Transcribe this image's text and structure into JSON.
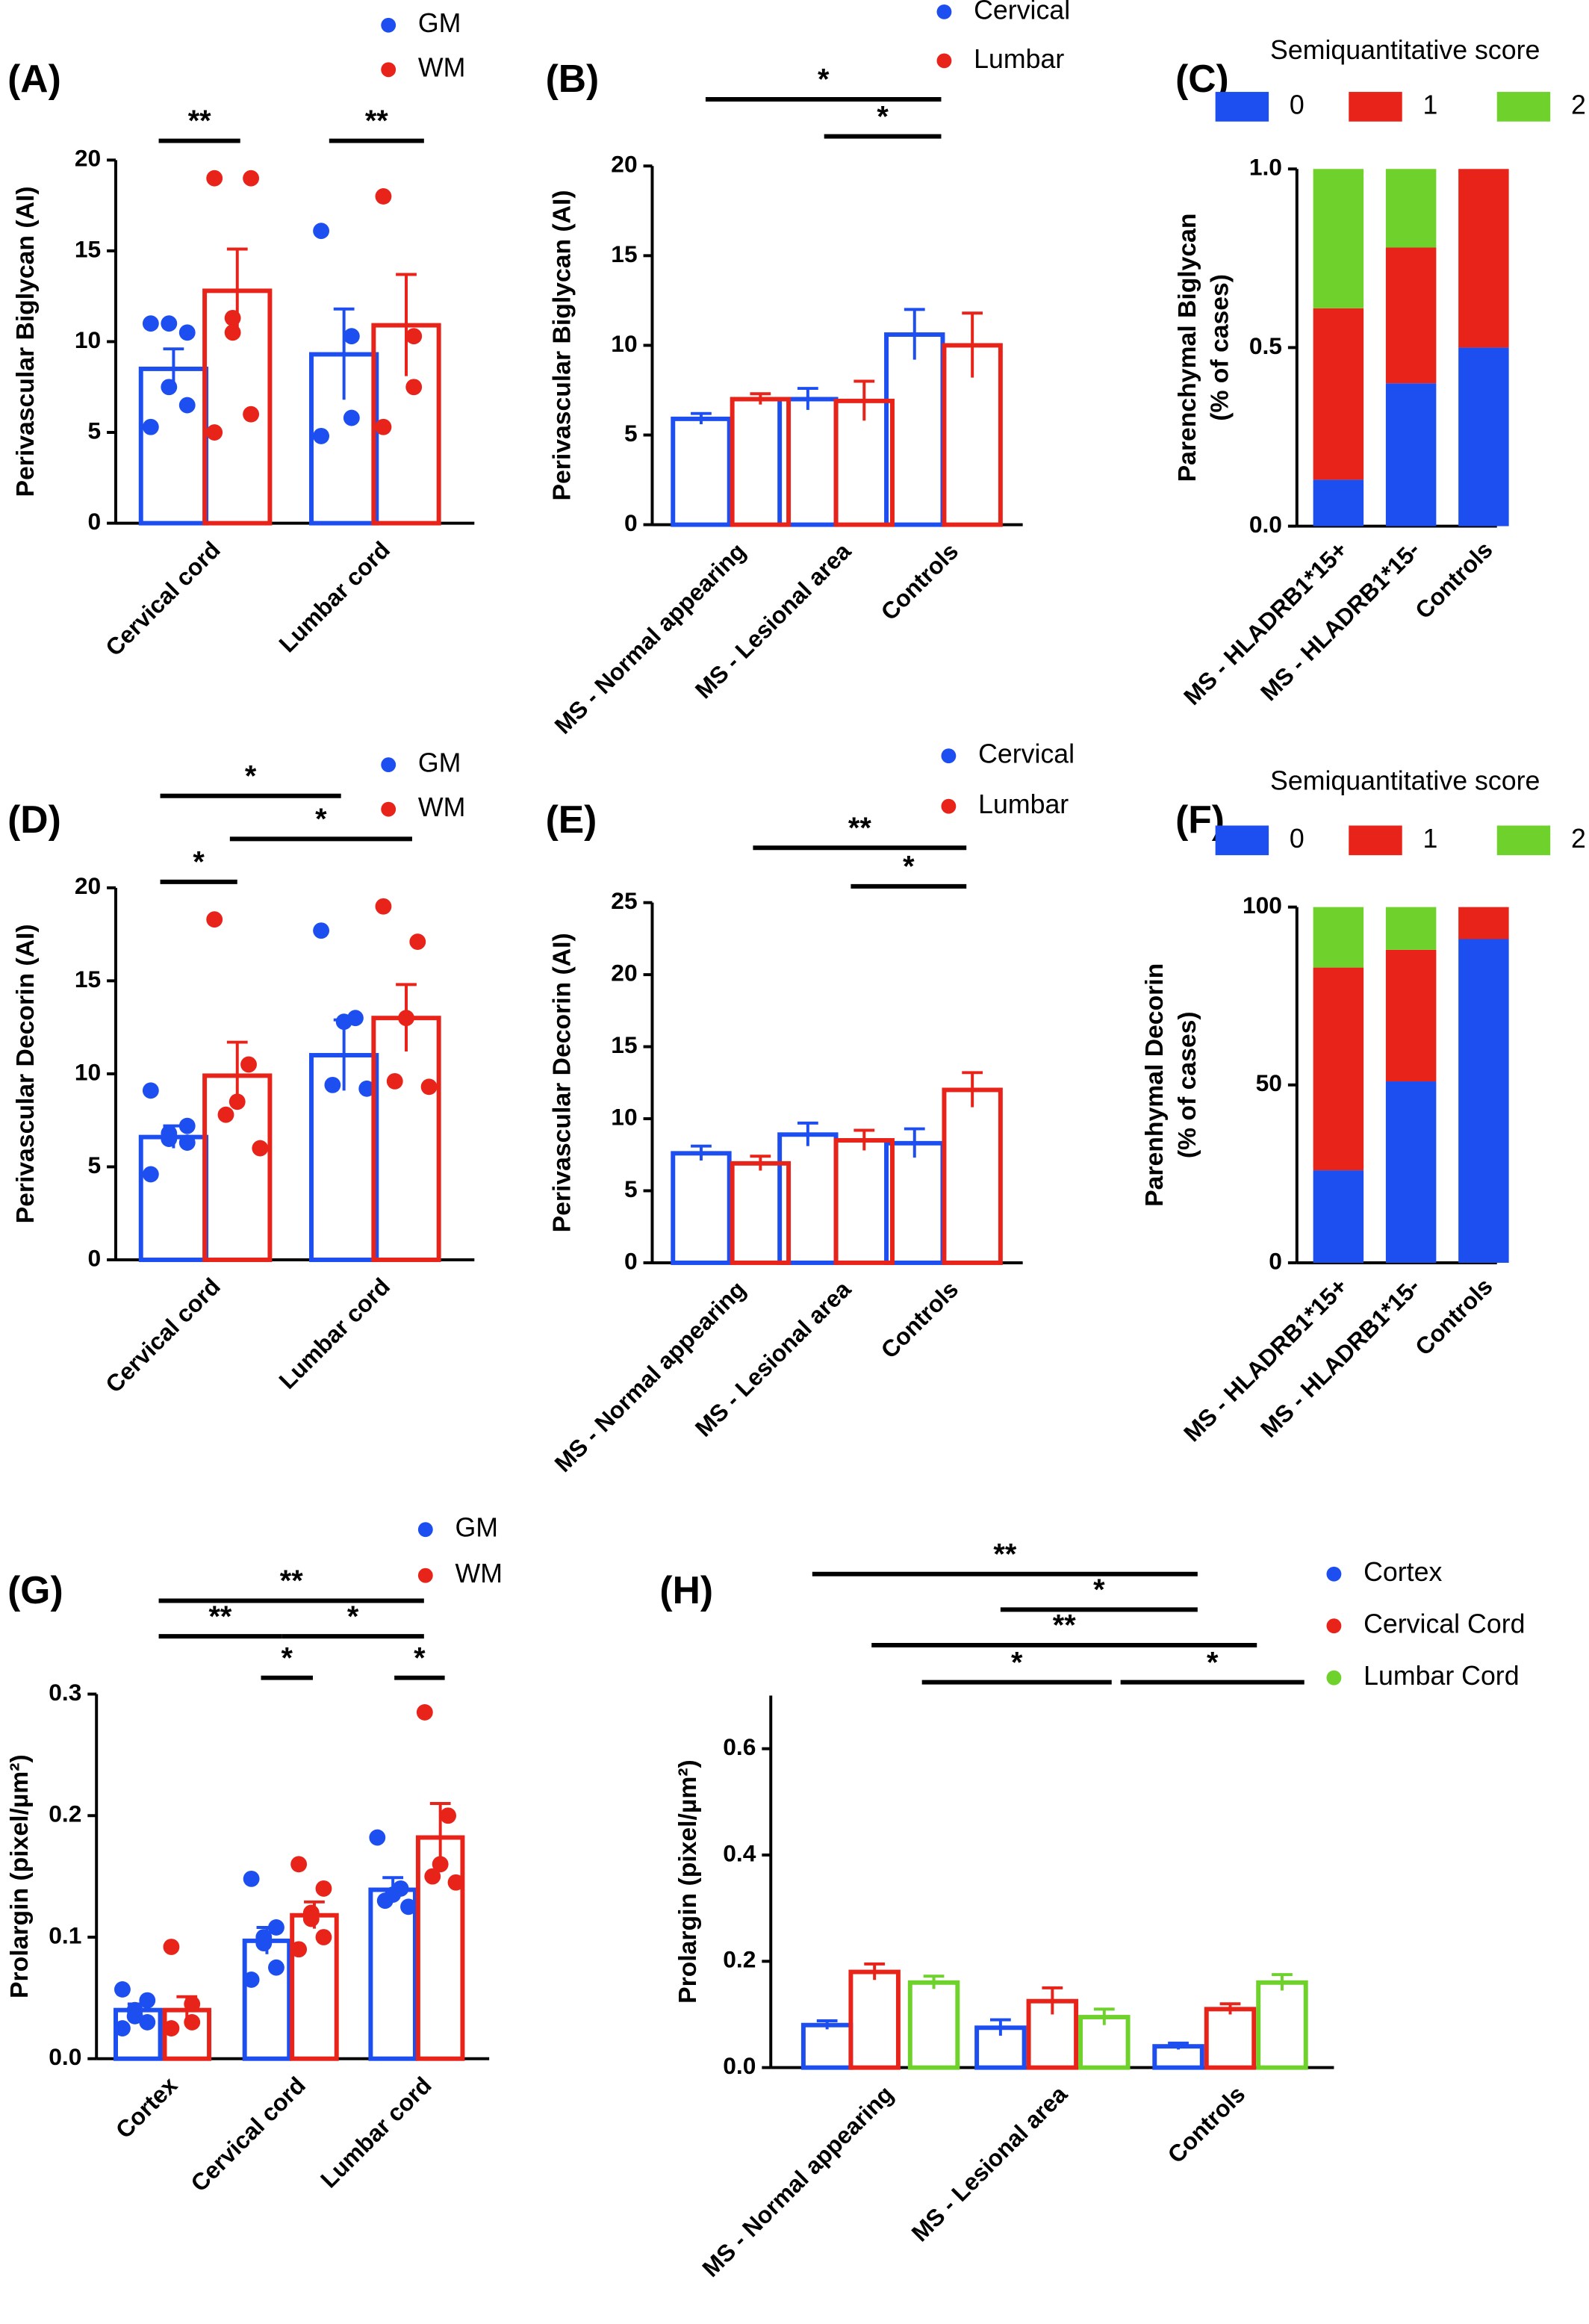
{
  "chart_data": [
    {
      "type": "bar",
      "title": "(A)",
      "ylabel": "Perivascular Biglycan (AI)",
      "categories": [
        "Cervical cord",
        "Lumbar cord"
      ],
      "series": [
        {
          "name": "GM",
          "color": "#1d4ff0",
          "values": [
            8.5,
            9.3
          ],
          "errors": [
            1.1,
            2.5
          ],
          "points": [
            [
              11,
              10.5,
              11,
              7.5,
              6.5,
              5.3
            ],
            [
              16.1,
              10.3,
              5.8,
              4.8
            ]
          ]
        },
        {
          "name": "WM",
          "color": "#e8231a",
          "values": [
            12.8,
            10.9
          ],
          "errors": [
            2.3,
            2.8
          ],
          "points": [
            [
              19,
              19,
              11.3,
              10.5,
              6,
              5
            ],
            [
              18,
              10.3,
              7.5,
              5.3
            ]
          ]
        }
      ],
      "ylim": [
        0,
        20
      ],
      "yticks": [
        0,
        5,
        10,
        15,
        20
      ],
      "annotations": [
        "**",
        "**"
      ]
    },
    {
      "type": "bar",
      "title": "(B)",
      "ylabel": "Perivascular Biglycan (AI)",
      "categories": [
        "MS - Normal appearing",
        "MS - Lesional area",
        "Controls"
      ],
      "series": [
        {
          "name": "Cervical",
          "color": "#1d4ff0",
          "values": [
            5.9,
            7.0,
            10.6
          ],
          "errors": [
            0.3,
            0.6,
            1.4
          ]
        },
        {
          "name": "Lumbar",
          "color": "#e8231a",
          "values": [
            7.0,
            6.9,
            10.0
          ],
          "errors": [
            0.3,
            1.1,
            1.8
          ]
        }
      ],
      "ylim": [
        0,
        20
      ],
      "yticks": [
        0,
        5,
        10,
        15,
        20
      ],
      "annotations": [
        "*",
        "*"
      ]
    },
    {
      "type": "stacked_bar",
      "title": "(C)",
      "ylabel": [
        "Parenchymal Biglycan",
        "(% of cases)"
      ],
      "legend_title": "Semiquantitative score",
      "categories": [
        "MS - HLADRB1*15+",
        "MS - HLADRB1*15-",
        "Controls"
      ],
      "series": [
        {
          "name": "0",
          "color": "#1d4ff0",
          "values": [
            0.13,
            0.4,
            0.5
          ]
        },
        {
          "name": "1",
          "color": "#e8231a",
          "values": [
            0.48,
            0.38,
            0.5
          ]
        },
        {
          "name": "2",
          "color": "#6fd22c",
          "values": [
            0.39,
            0.22,
            0
          ]
        }
      ],
      "ylim": [
        0,
        1
      ],
      "yticks": [
        {
          "value": 0,
          "label": "0.0"
        },
        {
          "value": 0.5,
          "label": "0.5"
        },
        {
          "value": 1,
          "label": "1.0"
        }
      ]
    },
    {
      "type": "bar",
      "title": "(D)",
      "ylabel": "Perivascular Decorin (AI)",
      "categories": [
        "Cervical cord",
        "Lumbar cord"
      ],
      "series": [
        {
          "name": "GM",
          "color": "#1d4ff0",
          "values": [
            6.6,
            11.0
          ],
          "errors": [
            0.6,
            1.9
          ],
          "points": [
            [
              9.1,
              7.2,
              6.8,
              6.5,
              6.3,
              4.6
            ],
            [
              17.7,
              13.0,
              12.8,
              9.4,
              9.2
            ]
          ]
        },
        {
          "name": "WM",
          "color": "#e8231a",
          "values": [
            9.9,
            13.0
          ],
          "errors": [
            1.8,
            1.8
          ],
          "points": [
            [
              18.3,
              10.5,
              8.5,
              7.8,
              6.0
            ],
            [
              19,
              17.1,
              13.0,
              9.6,
              9.3
            ]
          ]
        }
      ],
      "ylim": [
        0,
        20
      ],
      "yticks": [
        0,
        5,
        10,
        15,
        20
      ],
      "annotations": [
        "*",
        "*",
        "*"
      ]
    },
    {
      "type": "bar",
      "title": "(E)",
      "ylabel": "Perivascular Decorin (AI)",
      "categories": [
        "MS - Normal appearing",
        "MS - Lesional area",
        "Controls"
      ],
      "series": [
        {
          "name": "Cervical",
          "color": "#1d4ff0",
          "values": [
            7.6,
            8.9,
            8.3
          ],
          "errors": [
            0.5,
            0.8,
            1.0
          ]
        },
        {
          "name": "Lumbar",
          "color": "#e8231a",
          "values": [
            6.9,
            8.5,
            12.0
          ],
          "errors": [
            0.5,
            0.7,
            1.2
          ]
        }
      ],
      "ylim": [
        0,
        25
      ],
      "yticks": [
        0,
        5,
        10,
        15,
        20,
        25
      ],
      "annotations": [
        "**",
        "*"
      ]
    },
    {
      "type": "stacked_bar",
      "title": "(F)",
      "ylabel": [
        "Parenhymal Decorin",
        "(% of cases)"
      ],
      "legend_title": "Semiquantitative score",
      "categories": [
        "MS - HLADRB1*15+",
        "MS - HLADRB1*15-",
        "Controls"
      ],
      "series": [
        {
          "name": "0",
          "color": "#1d4ff0",
          "values": [
            26,
            51,
            91
          ]
        },
        {
          "name": "1",
          "color": "#e8231a",
          "values": [
            57,
            37,
            9
          ]
        },
        {
          "name": "2",
          "color": "#6fd22c",
          "values": [
            17,
            12,
            0
          ]
        }
      ],
      "ylim": [
        0,
        100
      ],
      "yticks": [
        0,
        50,
        100
      ]
    },
    {
      "type": "bar",
      "title": "(G)",
      "ylabel": "Prolargin (pixel/µm²)",
      "categories": [
        "Cortex",
        "Cervical cord",
        "Lumbar cord"
      ],
      "series": [
        {
          "name": "GM",
          "color": "#1d4ff0",
          "values": [
            0.04,
            0.097,
            0.139
          ],
          "errors": [
            0.005,
            0.011,
            0.01
          ],
          "points": [
            [
              0.057,
              0.048,
              0.04,
              0.035,
              0.03,
              0.025
            ],
            [
              0.148,
              0.108,
              0.1,
              0.095,
              0.075,
              0.065
            ],
            [
              0.182,
              0.14,
              0.135,
              0.13,
              0.125
            ]
          ]
        },
        {
          "name": "WM",
          "color": "#e8231a",
          "values": [
            0.04,
            0.118,
            0.182
          ],
          "errors": [
            0.011,
            0.011,
            0.028
          ],
          "points": [
            [
              0.092,
              0.045,
              0.03,
              0.025
            ],
            [
              0.16,
              0.14,
              0.12,
              0.115,
              0.1,
              0.09
            ],
            [
              0.285,
              0.2,
              0.16,
              0.15,
              0.145
            ]
          ]
        }
      ],
      "ylim": [
        0,
        0.3
      ],
      "yticks": [
        {
          "value": 0,
          "label": "0.0"
        },
        0.1,
        0.2,
        0.3
      ],
      "annotations": [
        "**",
        "**",
        "*",
        "*",
        "*"
      ]
    },
    {
      "type": "bar",
      "title": "(H)",
      "ylabel": "Prolargin (pixel/µm²)",
      "categories": [
        "MS - Normal appearing",
        "MS - Lesional area",
        "Controls"
      ],
      "series": [
        {
          "name": "Cortex",
          "color": "#1d4ff0",
          "values": [
            0.08,
            0.075,
            0.04
          ],
          "errors": [
            0.008,
            0.015,
            0.006
          ]
        },
        {
          "name": "Cervical Cord",
          "color": "#e8231a",
          "values": [
            0.18,
            0.125,
            0.11
          ],
          "errors": [
            0.015,
            0.025,
            0.01
          ]
        },
        {
          "name": "Lumbar Cord",
          "color": "#6fd22c",
          "values": [
            0.16,
            0.095,
            0.16
          ],
          "errors": [
            0.012,
            0.015,
            0.015
          ]
        }
      ],
      "ylim": [
        0,
        0.7
      ],
      "yticks": [
        {
          "value": 0,
          "label": "0.0"
        },
        0.2,
        0.4,
        0.6
      ],
      "annotations": [
        "**",
        "*",
        "**",
        "*",
        "*"
      ]
    }
  ]
}
